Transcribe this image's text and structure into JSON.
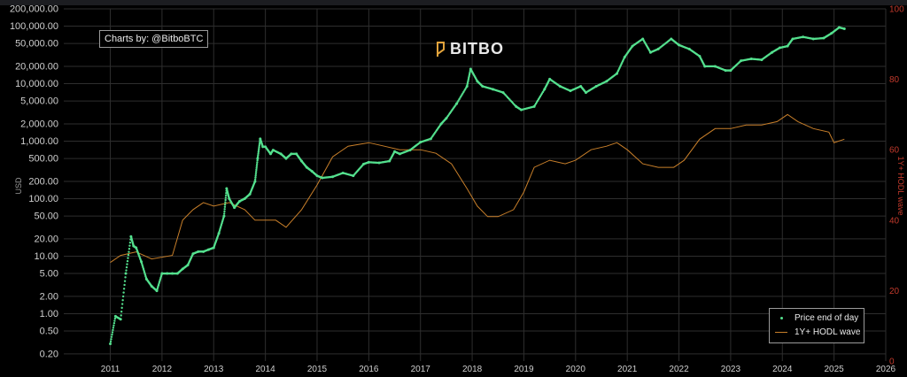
{
  "credit": "Charts by: @BitboBTC",
  "logo_text": "BITBO",
  "colors": {
    "price": "#54e08e",
    "hodl": "#c87f2a",
    "right_axis": "#c0392b",
    "grid": "#2e2e2e",
    "text": "#cfcfcf",
    "axis_title": "#9a9a9a"
  },
  "chart_data": {
    "type": "line",
    "y_left_label": "USD",
    "y_right_label": "1Y+ HODL wave",
    "y_left_scale": "log",
    "y_left_range": [
      0.15,
      200000
    ],
    "y_right_range": [
      0,
      100
    ],
    "x_range": [
      2010.1,
      2026
    ],
    "x_ticks": [
      "2011",
      "2012",
      "2013",
      "2014",
      "2015",
      "2016",
      "2017",
      "2018",
      "2019",
      "2020",
      "2021",
      "2022",
      "2023",
      "2024",
      "2025",
      "2026"
    ],
    "y_left_ticks": [
      "0.20",
      "0.50",
      "1.00",
      "2.00",
      "5.00",
      "10.00",
      "20.00",
      "50.00",
      "100.00",
      "200.00",
      "500.00",
      "1,000.00",
      "2,000.00",
      "5,000.00",
      "10,000.00",
      "20,000.00",
      "50,000.00",
      "100,000.00",
      "200,000.00"
    ],
    "y_right_ticks": [
      "0",
      "20",
      "40",
      "60",
      "80",
      "100"
    ],
    "legend_placement": "bottom-right",
    "series": [
      {
        "name": "Price end of day",
        "style": "dots",
        "x": [
          2011.0,
          2011.1,
          2011.2,
          2011.3,
          2011.4,
          2011.45,
          2011.5,
          2011.6,
          2011.7,
          2011.8,
          2011.9,
          2012.0,
          2012.1,
          2012.2,
          2012.3,
          2012.4,
          2012.5,
          2012.6,
          2012.7,
          2012.8,
          2012.9,
          2013.0,
          2013.1,
          2013.2,
          2013.25,
          2013.3,
          2013.4,
          2013.5,
          2013.6,
          2013.7,
          2013.8,
          2013.85,
          2013.9,
          2013.95,
          2014.0,
          2014.1,
          2014.15,
          2014.3,
          2014.4,
          2014.5,
          2014.6,
          2014.7,
          2014.8,
          2014.9,
          2015.0,
          2015.1,
          2015.3,
          2015.5,
          2015.7,
          2015.9,
          2016.0,
          2016.2,
          2016.4,
          2016.5,
          2016.6,
          2016.8,
          2017.0,
          2017.2,
          2017.4,
          2017.5,
          2017.7,
          2017.9,
          2017.97,
          2018.1,
          2018.2,
          2018.4,
          2018.6,
          2018.85,
          2018.95,
          2019.2,
          2019.4,
          2019.5,
          2019.7,
          2019.9,
          2020.1,
          2020.2,
          2020.4,
          2020.6,
          2020.8,
          2020.95,
          2021.1,
          2021.3,
          2021.45,
          2021.6,
          2021.85,
          2022.0,
          2022.2,
          2022.4,
          2022.5,
          2022.7,
          2022.9,
          2023.0,
          2023.2,
          2023.4,
          2023.6,
          2023.8,
          2023.95,
          2024.1,
          2024.2,
          2024.4,
          2024.6,
          2024.8,
          2024.95,
          2025.1,
          2025.2
        ],
        "y": [
          0.3,
          0.9,
          0.8,
          5,
          22,
          15,
          14,
          8,
          4,
          3,
          2.5,
          5,
          5,
          5,
          5,
          6,
          7,
          11,
          12,
          12,
          13,
          14,
          25,
          50,
          150,
          100,
          70,
          90,
          100,
          120,
          200,
          500,
          1100,
          800,
          800,
          600,
          700,
          600,
          500,
          600,
          600,
          450,
          350,
          300,
          250,
          230,
          240,
          280,
          250,
          400,
          430,
          420,
          450,
          660,
          600,
          700,
          960,
          1100,
          2000,
          2500,
          4500,
          9000,
          18000,
          11000,
          9000,
          8000,
          7000,
          4000,
          3500,
          4000,
          8000,
          12000,
          9000,
          7500,
          9000,
          7000,
          9000,
          11000,
          15000,
          29000,
          45000,
          60000,
          35000,
          40000,
          60000,
          47000,
          40000,
          30000,
          20000,
          20000,
          17000,
          17000,
          25000,
          27000,
          26000,
          35000,
          42000,
          45000,
          60000,
          65000,
          60000,
          62000,
          75000,
          95000,
          90000
        ],
        "color": "#54e08e"
      },
      {
        "name": "1Y+ HODL wave",
        "style": "line",
        "x": [
          2011.0,
          2011.2,
          2011.5,
          2011.8,
          2012.2,
          2012.4,
          2012.6,
          2012.8,
          2013.0,
          2013.3,
          2013.6,
          2013.8,
          2014.0,
          2014.2,
          2014.4,
          2014.7,
          2015.0,
          2015.3,
          2015.6,
          2016.0,
          2016.3,
          2016.6,
          2017.0,
          2017.3,
          2017.6,
          2017.9,
          2018.1,
          2018.3,
          2018.5,
          2018.8,
          2019.0,
          2019.2,
          2019.5,
          2019.8,
          2020.0,
          2020.3,
          2020.6,
          2020.8,
          2021.0,
          2021.3,
          2021.6,
          2021.9,
          2022.1,
          2022.4,
          2022.7,
          2023.0,
          2023.3,
          2023.6,
          2023.9,
          2024.1,
          2024.3,
          2024.6,
          2024.9,
          2025.0,
          2025.2
        ],
        "y": [
          28,
          30,
          31,
          29,
          30,
          40,
          43,
          45,
          44,
          45,
          43,
          40,
          40,
          40,
          38,
          43,
          50,
          58,
          61,
          62,
          61,
          60,
          60,
          59,
          56,
          49,
          44,
          41,
          41,
          43,
          48,
          55,
          57,
          56,
          57,
          60,
          61,
          62,
          60,
          56,
          55,
          55,
          57,
          63,
          66,
          66,
          67,
          67,
          68,
          70,
          68,
          66,
          65,
          62,
          63
        ],
        "color": "#c87f2a"
      }
    ]
  },
  "legend": {
    "items": [
      {
        "label": "Price end of day"
      },
      {
        "label": "1Y+ HODL wave"
      }
    ]
  }
}
